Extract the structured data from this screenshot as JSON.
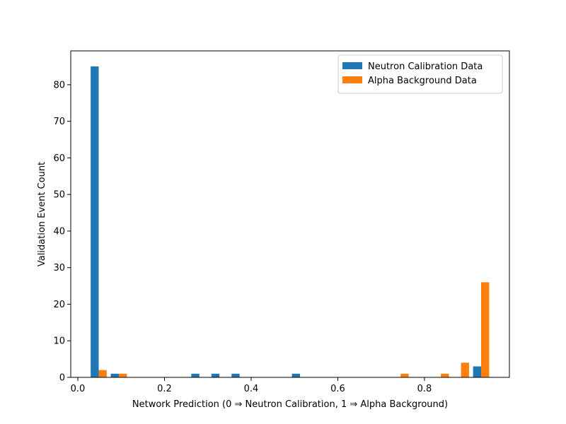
{
  "chart_data": {
    "type": "histogram",
    "xlabel": "Network Prediction (0 ⇒ Neutron Calibration, 1 ⇒ Alpha Background)",
    "ylabel": "Validation Event Count",
    "bins": [
      0.025,
      0.0714,
      0.1179,
      0.1643,
      0.2108,
      0.2572,
      0.3037,
      0.3501,
      0.3966,
      0.443,
      0.4895,
      0.5359,
      0.5824,
      0.6288,
      0.6753,
      0.7217,
      0.7682,
      0.8146,
      0.8611,
      0.9075,
      0.954
    ],
    "series": [
      {
        "name": "Neutron Calibration Data",
        "color": "#1f77b4",
        "values": [
          85,
          1,
          0,
          0,
          0,
          1,
          1,
          1,
          0,
          0,
          1,
          0,
          0,
          0,
          0,
          0,
          0,
          0,
          0,
          3
        ]
      },
      {
        "name": "Alpha Background Data",
        "color": "#ff7f0e",
        "values": [
          2,
          1,
          0,
          0,
          0,
          0,
          0,
          0,
          0,
          0,
          0,
          0,
          0,
          0,
          0,
          1,
          0,
          1,
          4,
          26
        ]
      }
    ],
    "xlim": [
      -0.0163,
      0.996
    ],
    "ylim": [
      0,
      89.25
    ],
    "xticks": [
      {
        "value": 0,
        "label": "0.0"
      },
      0.2,
      0.4,
      0.6,
      0.8
    ],
    "yticks": [
      0,
      10,
      20,
      30,
      40,
      50,
      60,
      70,
      80
    ],
    "legend": "upper right"
  }
}
